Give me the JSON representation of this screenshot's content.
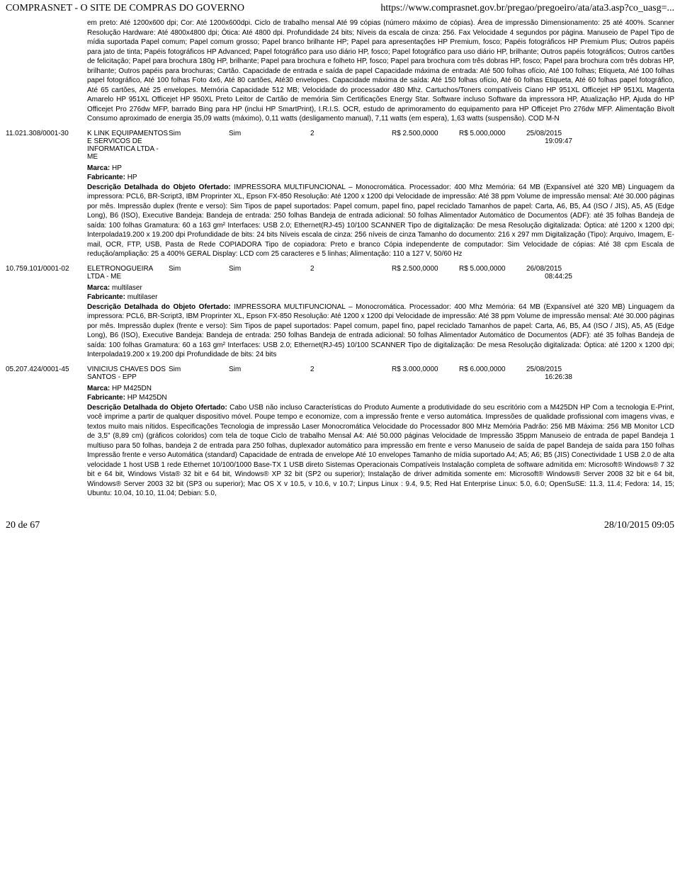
{
  "header": {
    "left": "COMPRASNET - O SITE DE COMPRAS DO GOVERNO",
    "right": "https://www.comprasnet.gov.br/pregao/pregoeiro/ata/ata3.asp?co_uasg=..."
  },
  "block0": {
    "text": "em preto: Até 1200x600 dpi; Cor: Até 1200x600dpi. Ciclo de trabalho mensal Até 99 cópias (número máximo de cópias). Área de impressão Dimensionamento: 25 até 400%. Scanner Resolução Hardware: Até 4800x4800 dpi; Ótica: Até 4800 dpi. Profundidade 24 bits; Níveis da escala de cinza: 256. Fax Velocidade 4 segundos por página. Manuseio de Papel Tipo de mídia suportada Papel comum; Papel comum grosso; Papel branco brilhante HP; Papel para apresentações HP Premium, fosco; Papéis fotográficos HP Premium Plus; Outros papéis para jato de tinta; Papéis fotográficos HP Advanced; Papel fotográfico para uso diário HP, fosco; Papel fotográfico para uso diário HP, brilhante; Outros papéis fotográficos; Outros cartões de felicitação; Papel para brochura 180g HP, brilhante; Papel para brochura e folheto HP, fosco; Papel para brochura com três dobras HP, fosco; Papel para brochura com três dobras HP, brilhante; Outros papéis para brochuras; Cartão. Capacidade de entrada e saída de papel Capacidade máxima de entrada: Até 500 folhas ofício, Até 100 folhas; Etiqueta, Até 100 folhas papel fotográfico, Até 100 folhas Foto 4x6, Até 80 cartões, Até30 envelopes. Capacidade máxima de saída: Até 150 folhas ofício, Até 60 folhas Etiqueta, Até 60 folhas papel fotográfico, Até 65 cartões, Até 25 envelopes. Memória Capacidade 512 MB; Velocidade do processador 480 Mhz. Cartuchos/Toners compatíveis Ciano HP 951XL Officejet HP 951XL Magenta Amarelo HP 951XL Officejet HP 950XL Preto Leitor de Cartão de memória Sim Certificações Energy Star. Software incluso Software da impressora HP, Atualização HP, Ajuda do HP Officejet Pro 276dw MFP, barrado Bing para HP (inclui HP SmartPrint), I.R.I.S. OCR, estudo de aprimoramento do equipamento para HP Officejet Pro 276dw MFP. Alimentação Bivolt Consumo aproximado de energia 35,09 watts (máximo), 0,11 watts (desligamento manual), 7,11 watts (em espera), 1,63 watts (suspensão). COD M-N"
  },
  "row1": {
    "cnpj": "11.021.308/0001-30",
    "company": "K LINK EQUIPAMENTOS E SERVICOS DE INFORMATICA LTDA - ME",
    "sim1": "Sim",
    "sim2": "Sim",
    "qty": "2",
    "price1": "R$ 2.500,0000",
    "price2": "R$ 5.000,0000",
    "date": "25/08/2015",
    "time": "19:09:47",
    "marca_label": "Marca: ",
    "marca": "HP",
    "fabricante_label": "Fabricante: ",
    "fabricante": "HP",
    "desc_label": "Descrição Detalhada do Objeto Ofertado: ",
    "desc": "IMPRESSORA MULTIFUNCIONAL – Monocromática. Processador: 400 Mhz Memória: 64 MB (Expansível até 320 MB) Linguagem da impressora: PCL6, BR-Script3, IBM Proprinter XL, Epson FX-850 Resolução: Até 1200 x 1200 dpi Velocidade de impressão: Até 38 ppm Volume de impressão mensal: Até 30.000 páginas por mês. Impressão duplex (frente e verso): Sim Tipos de papel suportados: Papel comum, papel fino, papel reciclado Tamanhos de papel: Carta, A6, B5, A4 (ISO / JIS), A5, A5 (Edge Long), B6 (ISO), Executive Bandeja: Bandeja de entrada: 250 folhas Bandeja de entrada adicional: 50 folhas Alimentador Automático de Documentos (ADF): até 35 folhas Bandeja de saída: 100 folhas Gramatura: 60 a 163 gm² Interfaces: USB 2.0; Ethernet(RJ-45) 10/100 SCANNER Tipo de digitalização: De mesa Resolução digitalizada: Óptica: até 1200 x 1200 dpi; Interpolada19.200 x 19.200 dpi Profundidade de bits: 24 bits Níveis escala de cinza: 256 níveis de cinza Tamanho do documento: 216 x 297 mm Digitalização (Tipo): Arquivo, Imagem, E-mail, OCR, FTP, USB, Pasta de Rede COPIADORA Tipo de copiadora: Preto e branco Cópia independente de computador: Sim Velocidade de cópias: Até 38 cpm Escala de redução/ampliação: 25 a 400% GERAL Display: LCD com 25 caracteres e 5 linhas; Alimentação: 110 a 127 V, 50/60 Hz"
  },
  "row2": {
    "cnpj": "10.759.101/0001-02",
    "company": "ELETRONOGUEIRA LTDA - ME",
    "sim1": "Sim",
    "sim2": "Sim",
    "qty": "2",
    "price1": "R$ 2.500,0000",
    "price2": "R$ 5.000,0000",
    "date": "26/08/2015",
    "time": "08:44:25",
    "marca_label": "Marca: ",
    "marca": "multilaser",
    "fabricante_label": "Fabricante: ",
    "fabricante": "multilaser",
    "desc_label": "Descrição Detalhada do Objeto Ofertado: ",
    "desc": "IMPRESSORA MULTIFUNCIONAL – Monocromática. Processador: 400 Mhz Memória: 64 MB (Expansível até 320 MB) Linguagem da impressora: PCL6, BR-Script3, IBM Proprinter XL, Epson FX-850 Resolução: Até 1200 x 1200 dpi Velocidade de impressão: Até 38 ppm Volume de impressão mensal: Até 30.000 páginas por mês. Impressão duplex (frente e verso): Sim Tipos de papel suportados: Papel comum, papel fino, papel reciclado Tamanhos de papel: Carta, A6, B5, A4 (ISO / JIS), A5, A5 (Edge Long), B6 (ISO), Executive Bandeja: Bandeja de entrada: 250 folhas Bandeja de entrada adicional: 50 folhas Alimentador Automático de Documentos (ADF): até 35 folhas Bandeja de saída: 100 folhas Gramatura: 60 a 163 gm² Interfaces: USB 2.0; Ethernet(RJ-45) 10/100 SCANNER Tipo de digitalização: De mesa Resolução digitalizada: Óptica: até 1200 x 1200 dpi; Interpolada19.200 x 19.200 dpi Profundidade de bits: 24 bits"
  },
  "row3": {
    "cnpj": "05.207.424/0001-45",
    "company": "VINICIUS CHAVES DOS SANTOS - EPP",
    "sim1": "Sim",
    "sim2": "Sim",
    "qty": "2",
    "price1": "R$ 3.000,0000",
    "price2": "R$ 6.000,0000",
    "date": "25/08/2015",
    "time": "16:26:38",
    "marca_label": "Marca: ",
    "marca": "HP M425DN",
    "fabricante_label": "Fabricante: ",
    "fabricante": "HP M425DN",
    "desc_label": "Descrição Detalhada do Objeto Ofertado: ",
    "desc": "Cabo USB não incluso Características do Produto Aumente a produtividade do seu escritório com a M425DN HP Com a tecnologia E-Print, você imprime a partir de qualquer dispositivo móvel. Poupe tempo e economize, com a impressão frente e verso automática. Impressões de qualidade profissional com imagens vivas, e textos muito mais nítidos. Especificações Tecnologia de impressão Laser Monocromática Velocidade do Processador 800 MHz Memória Padrão: 256 MB Máxima: 256 MB Monitor LCD de 3,5\" (8,89 cm) (gráficos coloridos) com tela de toque Ciclo de trabalho Mensal A4: Até 50.000 páginas Velocidade de Impressão 35ppm Manuseio de entrada de papel Bandeja 1 multiuso para 50 folhas, bandeja 2 de entrada para 250 folhas, duplexador automático para impressão em frente e verso Manuseio de saída de papel Bandeja de saída para 150 folhas Impressão frente e verso Automática (standard) Capacidade de entrada de envelope Até 10 envelopes Tamanho de mídia suportado A4; A5; A6; B5 (JIS) Conectividade 1 USB 2.0 de alta velocidade 1 host USB 1 rede Ethernet 10/100/1000 Base-TX 1 USB direto Sistemas Operacionais Compatíveis Instalação completa de software admitida em: Microsoft® Windows® 7 32 bit e 64 bit, Windows Vista® 32 bit e 64 bit, Windows® XP 32 bit (SP2 ou superior); Instalação de driver admitida somente em: Microsoft® Windows® Server 2008 32 bit e 64 bit, Windows® Server 2003 32 bit (SP3 ou superior); Mac OS X v 10.5, v 10.6, v 10.7; Linpus Linux : 9.4, 9.5; Red Hat Enterprise Linux: 5.0, 6.0; OpenSuSE: 11.3, 11.4; Fedora: 14, 15; Ubuntu: 10.04, 10.10, 11.04; Debian: 5.0,"
  },
  "footer": {
    "left": "20 de 67",
    "right": "28/10/2015 09:05"
  }
}
